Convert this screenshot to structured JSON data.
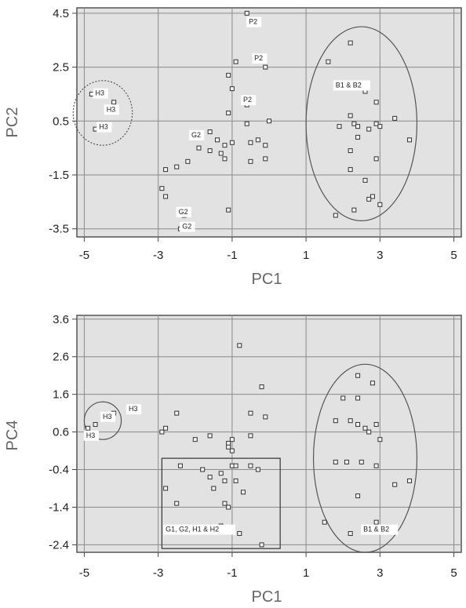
{
  "chart_data": [
    {
      "type": "scatter",
      "xlabel": "PC1",
      "ylabel": "PC2",
      "xlim": [
        -5.2,
        5.2
      ],
      "ylim": [
        -3.8,
        4.7
      ],
      "xticks": [
        "-5",
        "-3",
        "-1",
        "1",
        "3",
        "5"
      ],
      "yticks": [
        "4.5",
        "2.5",
        "0.5",
        "-1.5",
        "-3.5"
      ],
      "grid": true,
      "points": [
        {
          "x": -4.8,
          "y": 1.5
        },
        {
          "x": -4.2,
          "y": 1.2
        },
        {
          "x": -4.5,
          "y": 0.3
        },
        {
          "x": -4.7,
          "y": 0.2
        },
        {
          "x": -0.6,
          "y": 4.5
        },
        {
          "x": -0.9,
          "y": 2.7
        },
        {
          "x": -0.4,
          "y": 2.8
        },
        {
          "x": -0.1,
          "y": 2.5
        },
        {
          "x": -1.1,
          "y": 2.2
        },
        {
          "x": -1.0,
          "y": 1.7
        },
        {
          "x": -0.7,
          "y": 1.2
        },
        {
          "x": -0.6,
          "y": 1.1
        },
        {
          "x": -1.1,
          "y": 0.8
        },
        {
          "x": -0.6,
          "y": 0.4
        },
        {
          "x": 0.0,
          "y": 0.5
        },
        {
          "x": -0.3,
          "y": -0.2
        },
        {
          "x": -0.5,
          "y": -0.3
        },
        {
          "x": -0.1,
          "y": -0.4
        },
        {
          "x": -0.1,
          "y": -0.9
        },
        {
          "x": -0.5,
          "y": -1.0
        },
        {
          "x": -1.0,
          "y": -0.3
        },
        {
          "x": -1.2,
          "y": -0.4
        },
        {
          "x": -1.3,
          "y": -0.7
        },
        {
          "x": -1.2,
          "y": -0.9
        },
        {
          "x": -1.4,
          "y": -0.2
        },
        {
          "x": -1.6,
          "y": 0.1
        },
        {
          "x": -1.6,
          "y": -0.6
        },
        {
          "x": -1.9,
          "y": -0.5
        },
        {
          "x": -2.2,
          "y": -1.0
        },
        {
          "x": -2.5,
          "y": -1.2
        },
        {
          "x": -2.8,
          "y": -1.3
        },
        {
          "x": -2.9,
          "y": -2.0
        },
        {
          "x": -2.8,
          "y": -2.3
        },
        {
          "x": -1.1,
          "y": -2.8
        },
        {
          "x": -2.3,
          "y": -3.0
        },
        {
          "x": -2.4,
          "y": -3.5
        },
        {
          "x": 1.6,
          "y": 2.7
        },
        {
          "x": 2.2,
          "y": 3.4
        },
        {
          "x": 2.1,
          "y": 1.9
        },
        {
          "x": 2.6,
          "y": 1.6
        },
        {
          "x": 2.9,
          "y": 1.2
        },
        {
          "x": 2.2,
          "y": 0.7
        },
        {
          "x": 3.4,
          "y": 0.6
        },
        {
          "x": 1.9,
          "y": 0.3
        },
        {
          "x": 2.3,
          "y": 0.4
        },
        {
          "x": 2.4,
          "y": 0.3
        },
        {
          "x": 2.7,
          "y": 0.2
        },
        {
          "x": 2.9,
          "y": 0.4
        },
        {
          "x": 3.0,
          "y": 0.3
        },
        {
          "x": 3.8,
          "y": -0.2
        },
        {
          "x": 2.4,
          "y": -0.1
        },
        {
          "x": 2.2,
          "y": -0.6
        },
        {
          "x": 2.9,
          "y": -0.9
        },
        {
          "x": 2.2,
          "y": -1.3
        },
        {
          "x": 2.6,
          "y": -1.7
        },
        {
          "x": 2.8,
          "y": -2.3
        },
        {
          "x": 2.7,
          "y": -2.4
        },
        {
          "x": 3.0,
          "y": -2.6
        },
        {
          "x": 2.3,
          "y": -2.8
        },
        {
          "x": 1.8,
          "y": -3.0
        }
      ],
      "annotations": [
        {
          "text": "H3",
          "x": -4.7,
          "y": 1.45
        },
        {
          "text": "H3",
          "x": -4.4,
          "y": 0.85
        },
        {
          "text": "H3",
          "x": -4.6,
          "y": 0.2
        },
        {
          "text": "P2",
          "x": -0.55,
          "y": 4.1
        },
        {
          "text": "P2",
          "x": -0.4,
          "y": 2.75
        },
        {
          "text": "P2",
          "x": -0.7,
          "y": 1.2
        },
        {
          "text": "G2",
          "x": -2.1,
          "y": -0.1
        },
        {
          "text": "G2",
          "x": -2.45,
          "y": -2.95
        },
        {
          "text": "G2",
          "x": -2.35,
          "y": -3.5
        },
        {
          "text": "B1 & B2",
          "x": 1.8,
          "y": 1.75
        }
      ],
      "ellipses": [
        {
          "cx": -4.5,
          "cy": 0.8,
          "rx": 0.8,
          "ry": 1.2,
          "style": "dotted"
        },
        {
          "cx": 2.5,
          "cy": 0.4,
          "rx": 1.5,
          "ry": 3.6,
          "style": "solid"
        }
      ]
    },
    {
      "type": "scatter",
      "xlabel": "PC1",
      "ylabel": "PC4",
      "xlim": [
        -5.2,
        5.2
      ],
      "ylim": [
        -2.6,
        3.7
      ],
      "xticks": [
        "-5",
        "-3",
        "-1",
        "1",
        "3",
        "5"
      ],
      "yticks": [
        "3.6",
        "2.6",
        "1.6",
        "0.6",
        "-0.4",
        "-1.4",
        "-2.4"
      ],
      "grid": true,
      "points": [
        {
          "x": -4.2,
          "y": 1.1
        },
        {
          "x": -4.7,
          "y": 0.8
        },
        {
          "x": -4.9,
          "y": 0.7
        },
        {
          "x": -2.9,
          "y": 0.6
        },
        {
          "x": -2.8,
          "y": 0.7
        },
        {
          "x": -2.5,
          "y": 1.1
        },
        {
          "x": -2.0,
          "y": 0.4
        },
        {
          "x": -1.6,
          "y": 0.5
        },
        {
          "x": -1.1,
          "y": 0.3
        },
        {
          "x": -1.1,
          "y": 0.2
        },
        {
          "x": -1.0,
          "y": 0.4
        },
        {
          "x": -1.0,
          "y": 0.1
        },
        {
          "x": -0.8,
          "y": 2.9
        },
        {
          "x": -0.2,
          "y": 1.8
        },
        {
          "x": -0.5,
          "y": 1.1
        },
        {
          "x": -0.1,
          "y": 1.0
        },
        {
          "x": -0.5,
          "y": 0.5
        },
        {
          "x": -2.8,
          "y": -0.9
        },
        {
          "x": -2.4,
          "y": -0.3
        },
        {
          "x": -2.5,
          "y": -1.3
        },
        {
          "x": -1.8,
          "y": -0.4
        },
        {
          "x": -1.6,
          "y": -0.6
        },
        {
          "x": -1.5,
          "y": -0.9
        },
        {
          "x": -1.3,
          "y": -0.5
        },
        {
          "x": -1.2,
          "y": -0.7
        },
        {
          "x": -1.2,
          "y": -1.3
        },
        {
          "x": -1.1,
          "y": -1.4
        },
        {
          "x": -1.0,
          "y": -0.3
        },
        {
          "x": -0.9,
          "y": -0.3
        },
        {
          "x": -0.9,
          "y": -0.7
        },
        {
          "x": -0.7,
          "y": -1.0
        },
        {
          "x": -0.5,
          "y": -0.3
        },
        {
          "x": -0.3,
          "y": -0.4
        },
        {
          "x": -1.3,
          "y": -1.9
        },
        {
          "x": -0.8,
          "y": -2.1
        },
        {
          "x": -0.2,
          "y": -2.4
        },
        {
          "x": 2.4,
          "y": 2.1
        },
        {
          "x": 2.8,
          "y": 1.9
        },
        {
          "x": 2.0,
          "y": 1.5
        },
        {
          "x": 2.4,
          "y": 1.5
        },
        {
          "x": 1.8,
          "y": 0.9
        },
        {
          "x": 2.2,
          "y": 0.9
        },
        {
          "x": 2.4,
          "y": 0.8
        },
        {
          "x": 2.6,
          "y": 0.7
        },
        {
          "x": 2.7,
          "y": 0.6
        },
        {
          "x": 2.9,
          "y": 0.8
        },
        {
          "x": 3.0,
          "y": 0.4
        },
        {
          "x": 1.8,
          "y": -0.2
        },
        {
          "x": 2.1,
          "y": -0.2
        },
        {
          "x": 2.5,
          "y": -0.2
        },
        {
          "x": 2.9,
          "y": -0.3
        },
        {
          "x": 3.4,
          "y": -0.8
        },
        {
          "x": 3.8,
          "y": -0.7
        },
        {
          "x": 2.4,
          "y": -1.1
        },
        {
          "x": 1.5,
          "y": -1.8
        },
        {
          "x": 2.9,
          "y": -1.8
        },
        {
          "x": 2.2,
          "y": -2.1
        }
      ],
      "annotations": [
        {
          "text": "H3",
          "x": -4.5,
          "y": 0.95
        },
        {
          "text": "H3",
          "x": -3.8,
          "y": 1.15
        },
        {
          "text": "H3",
          "x": -4.95,
          "y": 0.45
        },
        {
          "text": "G1, G2, H1 & H2",
          "x": -2.8,
          "y": -2.05
        },
        {
          "text": "B1 & B2",
          "x": 2.55,
          "y": -2.05
        }
      ],
      "ellipses": [
        {
          "cx": -4.5,
          "cy": 0.9,
          "rx": 0.5,
          "ry": 0.5,
          "style": "solid"
        },
        {
          "cx": 2.6,
          "cy": -0.1,
          "rx": 1.4,
          "ry": 2.5,
          "style": "solid"
        }
      ],
      "rectangles": [
        {
          "x0": -2.9,
          "x1": 0.3,
          "y0": -2.5,
          "y1": -0.1
        }
      ]
    }
  ]
}
